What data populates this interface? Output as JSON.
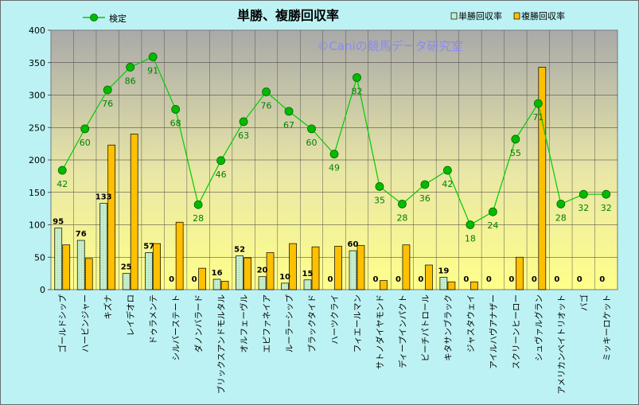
{
  "chart_data": {
    "type": "bar",
    "title": "単勝、複勝回収率",
    "watermark": "©Caniの競馬データ研究室",
    "categories": [
      "ゴールドシップ",
      "ハービンジャー",
      "キズナ",
      "レイデオロ",
      "ドゥラメンテ",
      "シルバーステート",
      "ダノンバラード",
      "ブリックスアンドモルタル",
      "オルフェーヴル",
      "エピファネイア",
      "ルーラーシップ",
      "ブラックタイド",
      "ハーツクライ",
      "フィエールマン",
      "サトノダイヤモンド",
      "ディープインパクト",
      "ビーチパトロール",
      "キタサンブラック",
      "ジャスタウェイ",
      "アイルハヴアナザー",
      "スクリーンヒーロー",
      "シュヴァルグラン",
      "アメリカンペイトリオット",
      "バゴ",
      "ミッキーロケット"
    ],
    "series": [
      {
        "name": "単勝回収率",
        "color": "#c6efce",
        "values": [
          95,
          76,
          133,
          25,
          57,
          0,
          0,
          16,
          52,
          20,
          10,
          15,
          0,
          60,
          0,
          0,
          0,
          19,
          0,
          0,
          0,
          0,
          0,
          0,
          0
        ]
      },
      {
        "name": "複勝回収率",
        "color": "#ffc000",
        "values": [
          69,
          48,
          223,
          240,
          71,
          104,
          33,
          13,
          49,
          57,
          71,
          66,
          67,
          68,
          14,
          69,
          38,
          12,
          12,
          0,
          50,
          343,
          0,
          0,
          0
        ]
      }
    ],
    "line_series": {
      "name": "検定",
      "color": "#00cc00",
      "values": [
        184,
        248,
        308,
        343,
        359,
        278,
        131,
        199,
        259,
        305,
        275,
        248,
        209,
        327,
        159,
        132,
        162,
        184,
        100,
        120,
        232,
        287,
        132,
        147,
        147
      ],
      "labels": [
        42,
        60,
        76,
        86,
        91,
        68,
        28,
        46,
        63,
        76,
        67,
        60,
        49,
        82,
        35,
        28,
        36,
        42,
        18,
        24,
        55,
        71,
        28,
        32,
        32
      ]
    },
    "ylim": [
      0,
      400
    ],
    "yticks": [
      0,
      50,
      100,
      150,
      200,
      250,
      300,
      350,
      400
    ],
    "grid": true,
    "legend": "top"
  }
}
